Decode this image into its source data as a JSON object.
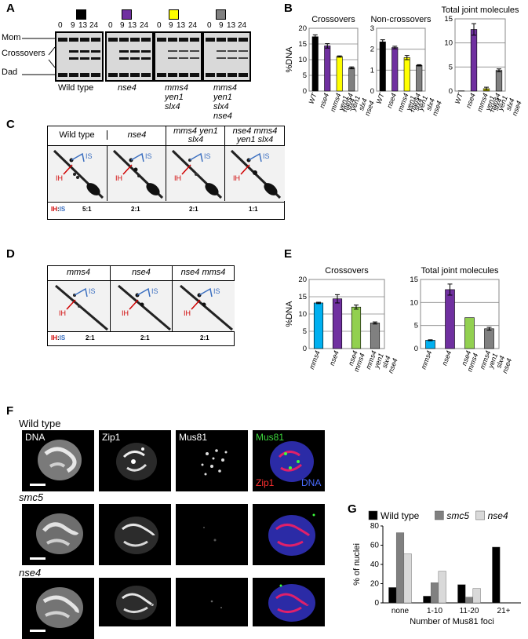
{
  "panels": {
    "A": "A",
    "B": "B",
    "C": "C",
    "D": "D",
    "E": "E",
    "F": "F",
    "G": "G"
  },
  "panel_a": {
    "timepoints": [
      "0",
      "9",
      "13",
      "24"
    ],
    "band_labels": [
      "Mom",
      "Crossovers",
      "Dad"
    ],
    "strain_labels": [
      "Wild type",
      "nse4",
      "mms4 yen1 slx4",
      "mms4 yen1 slx4 nse4"
    ],
    "swatch_colors": [
      "#000000",
      "#7030a0",
      "#ffff00",
      "#808080"
    ]
  },
  "panel_b": {
    "ylabel": "%DNA",
    "categories": [
      "WT",
      "nse4",
      "mms4 yen1 slx4",
      "mms4 yen1 slx4 nse4"
    ],
    "colors": [
      "#000000",
      "#7030a0",
      "#ffff00",
      "#808080"
    ]
  },
  "panel_c": {
    "headers": [
      "Wild type",
      "nse4",
      "mms4 yen1 slx4",
      "nse4 mms4 yen1 slx4"
    ],
    "ratios": [
      "5:1",
      "2:1",
      "2:1",
      "1:1"
    ],
    "ih": "IH",
    "is": "IS",
    "colon": ":"
  },
  "panel_d": {
    "headers": [
      "mms4",
      "nse4",
      "nse4 mms4"
    ],
    "ratios": [
      "2:1",
      "2:1",
      "2:1"
    ],
    "ih": "IH",
    "is": "IS",
    "colon": ":"
  },
  "panel_e": {
    "ylabel": "%DNA",
    "categories": [
      "mms4",
      "nse4",
      "nse4 mms4",
      "mms4 yen1 slx4 nse4"
    ],
    "colors": [
      "#00b0f0",
      "#7030a0",
      "#92d050",
      "#808080"
    ]
  },
  "panel_f": {
    "rows": [
      "Wild type",
      "smc5",
      "nse4"
    ],
    "columns": [
      "DNA",
      "Zip1",
      "Mus81"
    ],
    "merge_labels": [
      "Mus81",
      "Zip1",
      "DNA"
    ]
  },
  "chart_data": [
    {
      "type": "bar",
      "title": "Crossovers",
      "ylabel": "%DNA",
      "categories": [
        "WT",
        "nse4",
        "mms4 yen1 slx4",
        "mms4 yen1 slx4 nse4"
      ],
      "values": [
        17.3,
        14.4,
        11.0,
        7.4
      ],
      "errors": [
        0.6,
        0.7,
        0.2,
        0.3
      ],
      "ylim": [
        0,
        20
      ],
      "yticks": [
        0,
        5,
        10,
        15,
        20
      ]
    },
    {
      "type": "bar",
      "title": "Non-crossovers",
      "categories": [
        "WT",
        "nse4",
        "mms4 yen1 slx4",
        "mms4 yen1 slx4 nse4"
      ],
      "values": [
        2.35,
        2.08,
        1.6,
        1.23
      ],
      "errors": [
        0.1,
        0.06,
        0.1,
        0.03
      ],
      "ylim": [
        0,
        3
      ],
      "yticks": [
        0,
        1,
        2,
        3
      ]
    },
    {
      "type": "bar",
      "title": "Total joint molecules",
      "categories": [
        "WT",
        "nse4",
        "mms4 yen1 slx4",
        "mms4 yen1 slx4 nse4"
      ],
      "values": [
        0.05,
        12.8,
        0.5,
        4.3
      ],
      "errors": [
        0,
        1.2,
        0.3,
        0.3
      ],
      "ylim": [
        0,
        15
      ],
      "yticks": [
        0,
        5,
        10,
        15
      ]
    },
    {
      "type": "bar",
      "title": "Crossovers",
      "ylabel": "%DNA",
      "categories": [
        "mms4",
        "nse4",
        "nse4 mms4",
        "mms4 yen1 slx4 nse4"
      ],
      "values": [
        13.2,
        14.4,
        12.0,
        7.4
      ],
      "errors": [
        0.2,
        1.2,
        0.6,
        0.3
      ],
      "ylim": [
        0,
        20
      ],
      "yticks": [
        0,
        5,
        10,
        15,
        20
      ]
    },
    {
      "type": "bar",
      "title": "Total joint molecules",
      "categories": [
        "mms4",
        "nse4",
        "nse4 mms4",
        "mms4 yen1 slx4 nse4"
      ],
      "values": [
        1.8,
        12.8,
        6.7,
        4.3
      ],
      "errors": [
        0.1,
        1.2,
        0,
        0.3
      ],
      "ylim": [
        0,
        15
      ],
      "yticks": [
        0,
        5,
        10,
        15
      ]
    },
    {
      "type": "bar",
      "ylabel": "% of nuclei",
      "xlabel": "Number of Mus81 foci",
      "categories": [
        "none",
        "1-10",
        "11-20",
        "21+"
      ],
      "series": [
        {
          "name": "Wild type",
          "color": "#000000",
          "values": [
            16,
            7,
            19,
            58
          ]
        },
        {
          "name": "smc5",
          "color": "#808080",
          "values": [
            73,
            21,
            6,
            0
          ]
        },
        {
          "name": "nse4",
          "color": "#d9d9d9",
          "values": [
            51,
            33,
            15,
            0
          ]
        }
      ],
      "ylim": [
        0,
        80
      ],
      "yticks": [
        0,
        20,
        40,
        60,
        80
      ],
      "legend": "top"
    }
  ]
}
